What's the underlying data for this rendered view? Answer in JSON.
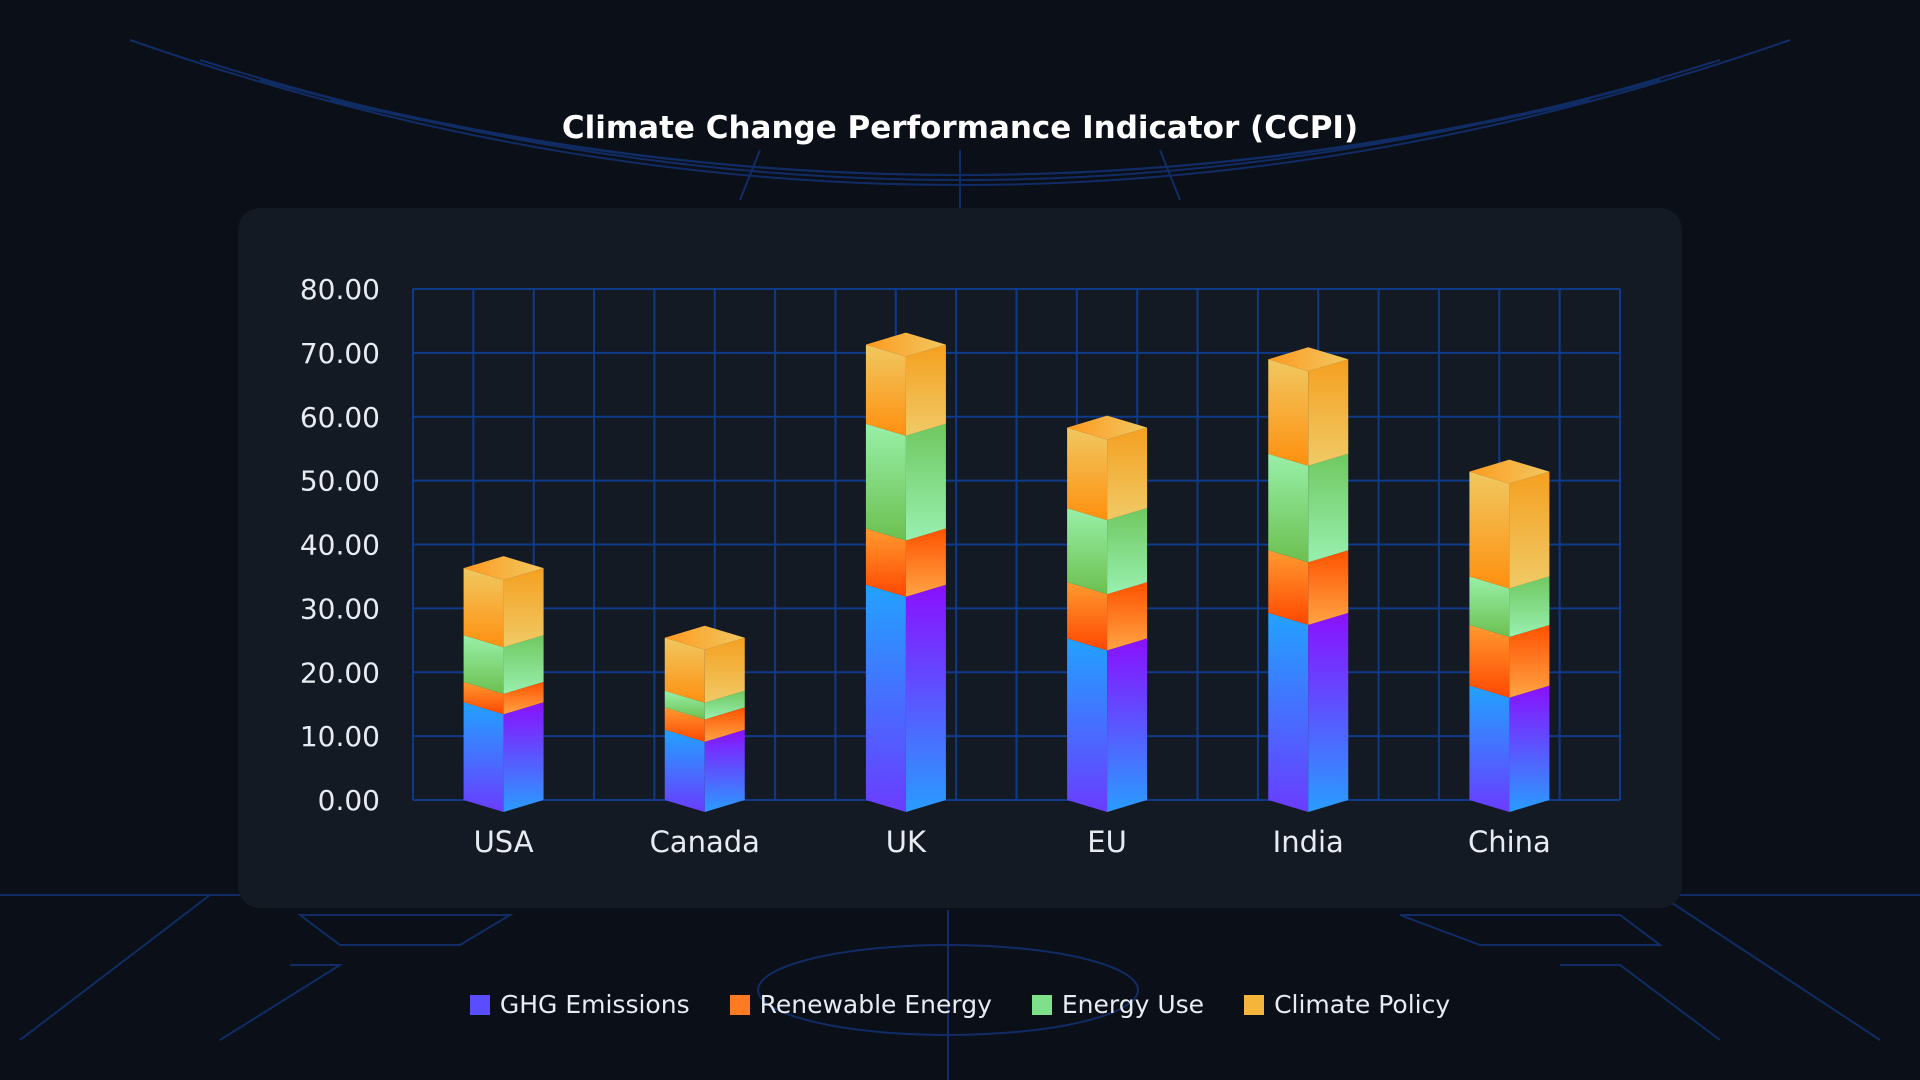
{
  "chart_data": {
    "type": "bar",
    "stacked": true,
    "title": "Climate Change Performance Indicator (CCPI)",
    "xlabel": "",
    "ylabel": "",
    "ylim": [
      0,
      80
    ],
    "yticks": [
      "0.00",
      "10.00",
      "20.00",
      "30.00",
      "40.00",
      "50.00",
      "60.00",
      "70.00",
      "80.00"
    ],
    "grid": true,
    "legend_position": "bottom",
    "categories": [
      "USA",
      "Canada",
      "UK",
      "EU",
      "India",
      "China"
    ],
    "series": [
      {
        "name": "GHG Emissions",
        "color": "#5a4cff",
        "values": [
          15.3,
          11.0,
          33.7,
          25.3,
          29.3,
          17.9
        ]
      },
      {
        "name": "Renewable Energy",
        "color": "#ff7a20",
        "values": [
          3.2,
          3.5,
          8.8,
          8.8,
          9.8,
          9.5
        ]
      },
      {
        "name": "Energy Use",
        "color": "#7ee08a",
        "values": [
          7.3,
          2.6,
          16.4,
          11.6,
          15.1,
          7.6
        ]
      },
      {
        "name": "Climate Policy",
        "color": "#f5b53a",
        "values": [
          10.5,
          8.3,
          12.4,
          12.6,
          14.8,
          16.4
        ]
      }
    ]
  }
}
